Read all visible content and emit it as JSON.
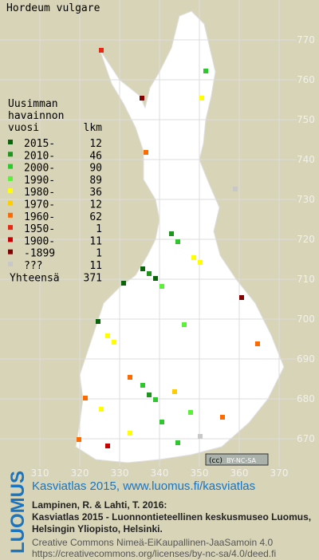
{
  "title": "Hordeum vulgare",
  "legend": {
    "heading": [
      "Uusimman",
      "havainnon"
    ],
    "year_header": "vuosi",
    "count_header": "lkm",
    "items": [
      {
        "label": "2015-",
        "count": 12,
        "color": "#0a640a"
      },
      {
        "label": "2010-",
        "count": 46,
        "color": "#1e961e"
      },
      {
        "label": "2000-",
        "count": 90,
        "color": "#2ec82e"
      },
      {
        "label": "1990-",
        "count": 89,
        "color": "#5cf03a"
      },
      {
        "label": "1980-",
        "count": 36,
        "color": "#ffff00"
      },
      {
        "label": "1970-",
        "count": 12,
        "color": "#ffcc00"
      },
      {
        "label": "1960-",
        "count": 62,
        "color": "#ff6a00"
      },
      {
        "label": "1950-",
        "count": 1,
        "color": "#e62814"
      },
      {
        "label": "1900-",
        "count": 11,
        "color": "#c80000"
      },
      {
        "label": "-1899",
        "count": 1,
        "color": "#820000"
      },
      {
        "label": "???",
        "count": 11,
        "color": "#c8c8c8"
      }
    ],
    "total_label": "Yhteensä",
    "total": 371
  },
  "north_labels": [
    770,
    760,
    750,
    740,
    730,
    720,
    710,
    700,
    690,
    680,
    670
  ],
  "east_labels": [
    310,
    320,
    330,
    340,
    350,
    360,
    370
  ],
  "license_badge": [
    "(cc)",
    "BY-NC-SA"
  ],
  "footer": {
    "logo": "LUOMUS",
    "site": "Kasviatlas 2015, www.luomus.fi/kasviatlas",
    "citation": [
      "Lampinen, R. & Lahti, T. 2016:",
      "Kasviatlas 2015 - Luonnontieteellinen keskusmuseo Luomus,",
      "Helsingin Yliopisto, Helsinki."
    ],
    "license": [
      "Creative Commons Nimeä-EiKaupallinen-JaaSamoin 4.0",
      "https://creativecommons.org/licenses/by-nc-sa/4.0/deed.fi"
    ]
  }
}
